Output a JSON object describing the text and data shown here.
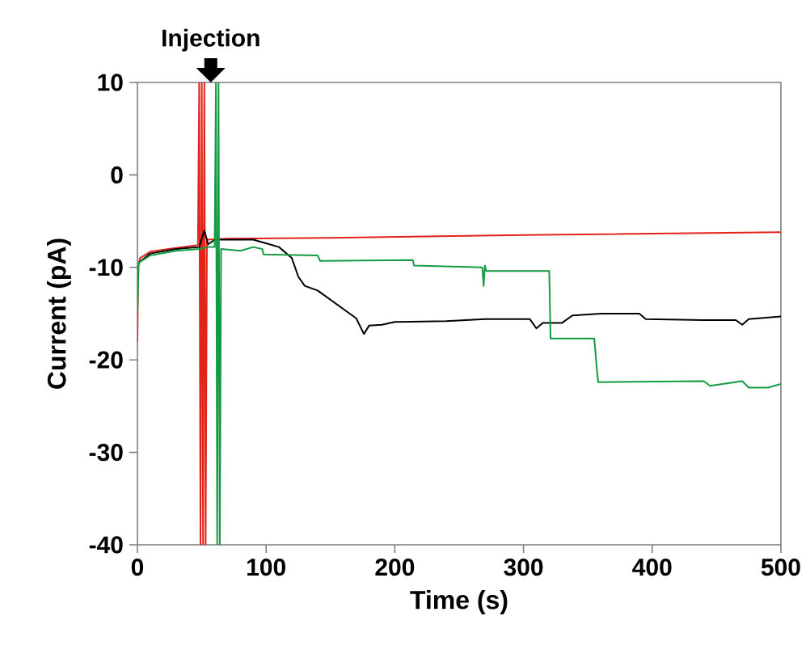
{
  "chart_data": {
    "type": "line",
    "xlabel": "Time (s)",
    "ylabel": "Current (pA)",
    "xlim": [
      0,
      500
    ],
    "ylim": [
      -40,
      10
    ],
    "xticks": [
      0,
      100,
      200,
      300,
      400,
      500
    ],
    "yticks": [
      -40,
      -30,
      -20,
      -10,
      0,
      10
    ],
    "marker": "none",
    "line_style": "solid",
    "annotations": [
      {
        "text": "Injection",
        "x": 57,
        "y": 10
      }
    ],
    "series": [
      {
        "color": "#e2231a",
        "x": [
          0,
          0.5,
          2,
          10,
          30,
          47,
          48,
          49,
          50,
          51,
          52,
          53,
          54,
          70,
          150,
          300,
          500
        ],
        "values": [
          -18,
          -10,
          -9,
          -8.3,
          -7.9,
          -7.6,
          10,
          -40,
          10,
          -40,
          10,
          -40,
          -7,
          -6.9,
          -6.8,
          -6.5,
          -6.2
        ]
      },
      {
        "color": "#000000",
        "x": [
          1,
          10,
          30,
          48,
          52,
          55,
          60,
          90,
          100,
          110,
          120,
          125,
          130,
          140,
          150,
          160,
          170,
          176,
          180,
          190,
          200,
          240,
          270,
          305,
          310,
          315,
          330,
          338,
          360,
          390,
          395,
          440,
          465,
          470,
          475,
          500
        ],
        "values": [
          -9.5,
          -8.5,
          -8,
          -7.8,
          -6,
          -7.5,
          -7,
          -7,
          -7.4,
          -7.8,
          -9,
          -11,
          -12,
          -12.5,
          -13.5,
          -14.5,
          -15.5,
          -17.2,
          -16.3,
          -16.2,
          -15.9,
          -15.8,
          -15.6,
          -15.6,
          -16.6,
          -16,
          -16,
          -15.2,
          -15,
          -15,
          -15.6,
          -15.7,
          -15.7,
          -16.2,
          -15.6,
          -15.3
        ]
      },
      {
        "color": "#139a43",
        "x": [
          0,
          1,
          10,
          30,
          48,
          55,
          60,
          61,
          62,
          63,
          64,
          65,
          80,
          90,
          97,
          98,
          140,
          142,
          214,
          215,
          268,
          269,
          270,
          271,
          320,
          321,
          355,
          357,
          358,
          440,
          445,
          470,
          475,
          490,
          500
        ],
        "values": [
          -15,
          -9.5,
          -8.7,
          -8.2,
          -8,
          -7.8,
          -7.8,
          10,
          -40,
          10,
          -40,
          -8,
          -8.2,
          -7.8,
          -8,
          -8.6,
          -8.7,
          -9.3,
          -9.2,
          -9.8,
          -10,
          -12,
          -9.8,
          -10.4,
          -10.4,
          -17.7,
          -17.7,
          -21,
          -22.4,
          -22.3,
          -22.8,
          -22.3,
          -23,
          -23,
          -22.6
        ]
      }
    ]
  }
}
